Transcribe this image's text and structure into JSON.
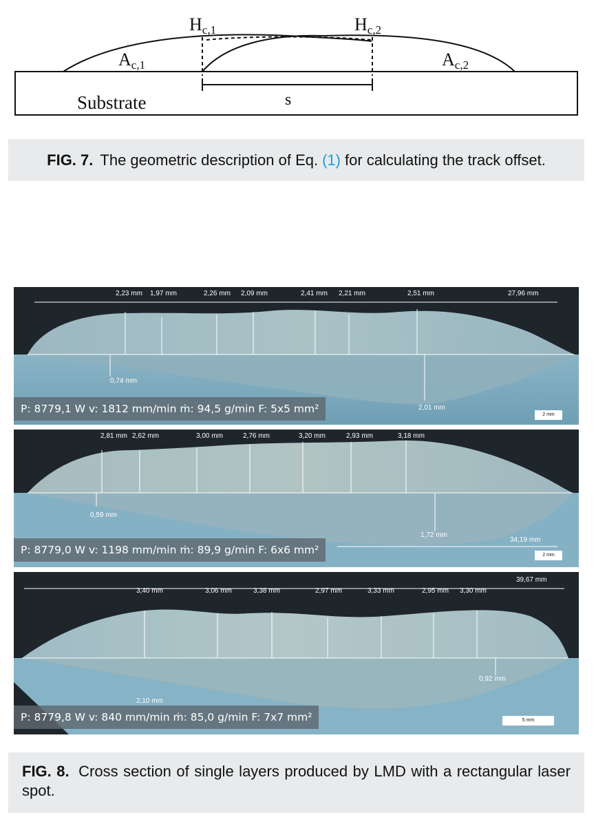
{
  "fig7": {
    "labels": {
      "hc1": "H",
      "hc1_sub": "c,1",
      "hc2": "H",
      "hc2_sub": "c,2",
      "ac1": "A",
      "ac1_sub": "c,1",
      "ac2": "A",
      "ac2_sub": "c,2",
      "substrate": "Substrate",
      "s": "s"
    },
    "caption": {
      "label": "FIG. 7.",
      "text_before": "The geometric description of Eq.",
      "ref": "(1)",
      "text_after": "for calculating the track offset."
    }
  },
  "fig8": {
    "panels": [
      {
        "top_measurements": [
          "2,23 mm",
          "1,97 mm",
          "2,26 mm",
          "2,09 mm",
          "2,41 mm",
          "2,21 mm",
          "2,51 mm",
          "27,96 mm"
        ],
        "depth_measurements": [
          "0,74 mm",
          "2,01 mm"
        ],
        "params": "P: 8779,1 W v: 1812 mm/min  ṁ: 94,5 g/min F: 5x5 mm²",
        "scale": "2 mm"
      },
      {
        "top_measurements": [
          "2,81 mm",
          "2,62 mm",
          "3,00 mm",
          "2,76 mm",
          "3,20 mm",
          "2,93 mm",
          "3,18 mm"
        ],
        "depth_measurements": [
          "0,59 mm",
          "1,72 mm",
          "34,19 mm"
        ],
        "params": "P: 8779,0 W v: 1198 mm/min  ṁ: 89,9 g/min F: 6x6 mm²",
        "scale": "2 mm"
      },
      {
        "top_measurements": [
          "39,67 mm",
          "3,40 mm",
          "3,06 mm",
          "3,38 mm",
          "2,97 mm",
          "3,33 mm",
          "2,95 mm",
          "3,30 mm"
        ],
        "depth_measurements": [
          "0,92 mm",
          "2,10 mm"
        ],
        "params": "P: 8779,8 W v: 840 mm/min  ṁ: 85,0 g/min F: 7x7 mm²",
        "scale": "5 mm"
      }
    ],
    "caption": {
      "label": "FIG. 8.",
      "text": "Cross section of single layers produced by LMD with a rectangular laser spot."
    }
  }
}
